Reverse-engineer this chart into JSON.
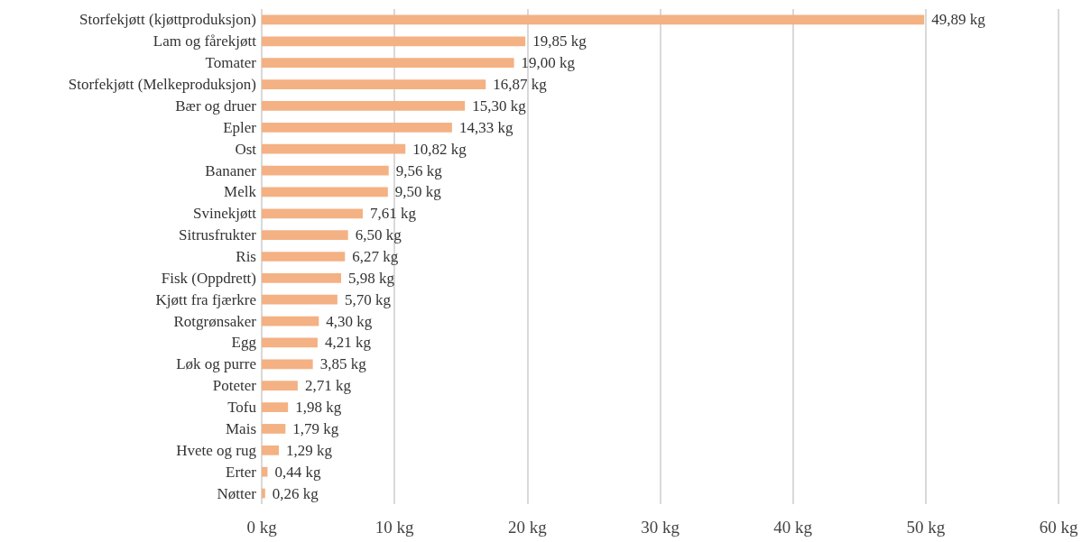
{
  "chart_data": {
    "type": "bar",
    "orientation": "horizontal",
    "categories": [
      "Storfekjøtt (kjøttproduksjon)",
      "Lam og fårekjøtt",
      "Tomater",
      "Storfekjøtt (Melkeproduksjon)",
      "Bær og druer",
      "Epler",
      "Ost",
      "Bananer",
      "Melk",
      "Svinekjøtt",
      "Sitrusfrukter",
      "Ris",
      "Fisk (Oppdrett)",
      "Kjøtt fra fjærkre",
      "Rotgrønsaker",
      "Egg",
      "Løk og purre",
      "Poteter",
      "Tofu",
      "Mais",
      "Hvete og rug",
      "Erter",
      "Nøtter"
    ],
    "values": [
      49.89,
      19.85,
      19.0,
      16.87,
      15.3,
      14.33,
      10.82,
      9.56,
      9.5,
      7.61,
      6.5,
      6.27,
      5.98,
      5.7,
      4.3,
      4.21,
      3.85,
      2.71,
      1.98,
      1.79,
      1.29,
      0.44,
      0.26
    ],
    "value_labels": [
      "49,89 kg",
      "19,85 kg",
      "19,00 kg",
      "16,87 kg",
      "15,30 kg",
      "14,33 kg",
      "10,82 kg",
      "9,56 kg",
      "9,50 kg",
      "7,61 kg",
      "6,50 kg",
      "6,27 kg",
      "5,98 kg",
      "5,70 kg",
      "4,30 kg",
      "4,21 kg",
      "3,85 kg",
      "2,71 kg",
      "1,98 kg",
      "1,79 kg",
      "1,29 kg",
      "0,44 kg",
      "0,26 kg"
    ],
    "color": "#f4b183",
    "xlim": [
      0,
      60
    ],
    "xticks": [
      {
        "value": 0,
        "label": "0 kg"
      },
      {
        "value": 10,
        "label": "10 kg"
      },
      {
        "value": 20,
        "label": "20 kg"
      },
      {
        "value": 30,
        "label": "30 kg"
      },
      {
        "value": 40,
        "label": "40 kg"
      },
      {
        "value": 50,
        "label": "50 kg"
      },
      {
        "value": 60,
        "label": "60 kg"
      }
    ],
    "grid": "x"
  }
}
